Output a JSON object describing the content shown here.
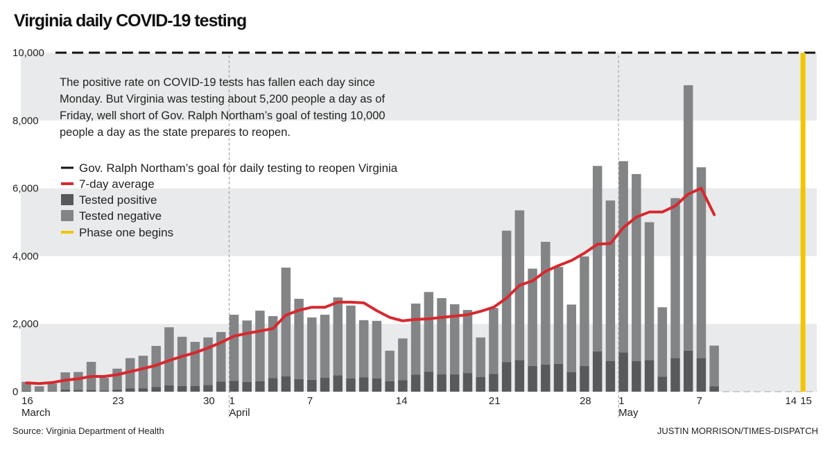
{
  "title": "Virginia daily COVID-19 testing",
  "annotation": [
    "The positive rate on COVID-19 tests has fallen each day since",
    "Monday. But Virginia was testing about 5,200 people a day as of",
    "Friday, well short of Gov. Ralph Northam’s goal of testing 10,000",
    "people a day as the state prepares to reopen."
  ],
  "legend": [
    {
      "label": "Gov. Ralph Northam’s goal for daily testing to reopen Virginia",
      "color": "#111111",
      "style": "dashed-line"
    },
    {
      "label": "7-day average",
      "color": "#d7282e",
      "style": "line"
    },
    {
      "label": "Tested positive",
      "color": "#58595b",
      "style": "box"
    },
    {
      "label": "Tested negative",
      "color": "#838486",
      "style": "box"
    },
    {
      "label": "Phase one begins",
      "color": "#f2c500",
      "style": "line"
    }
  ],
  "source": "Source: Virginia Department of Health",
  "credit": "JUSTIN MORRISON/TIMES-DISPATCH",
  "chart_data": {
    "type": "bar",
    "stacked": true,
    "ylim": [
      0,
      10000
    ],
    "yticks": [
      "0",
      "2,000",
      "4,000",
      "6,000",
      "8,000",
      "10,000"
    ],
    "ytick_values": [
      0,
      2000,
      4000,
      6000,
      8000,
      10000
    ],
    "x_range": [
      "March 16",
      "May 15"
    ],
    "grid": "alternating bands",
    "xticks": [
      {
        "label": "16",
        "month": "March",
        "date": "2020-03-16"
      },
      {
        "label": "23",
        "month": "",
        "date": "2020-03-23"
      },
      {
        "label": "30",
        "month": "",
        "date": "2020-03-30"
      },
      {
        "label": "1",
        "month": "April",
        "date": "2020-04-01"
      },
      {
        "label": "7",
        "month": "",
        "date": "2020-04-07"
      },
      {
        "label": "14",
        "month": "",
        "date": "2020-04-14"
      },
      {
        "label": "21",
        "month": "",
        "date": "2020-04-21"
      },
      {
        "label": "28",
        "month": "",
        "date": "2020-04-28"
      },
      {
        "label": "1",
        "month": "May",
        "date": "2020-05-01"
      },
      {
        "label": "7",
        "month": "",
        "date": "2020-05-07"
      },
      {
        "label": "14",
        "month": "",
        "date": "2020-05-14"
      },
      {
        "label": "15",
        "month": "",
        "date": "2020-05-15"
      }
    ],
    "start_date": "2020-03-16",
    "goal": 10000,
    "phase_one_date": "2020-05-15",
    "series": [
      {
        "name": "Tested positive",
        "values": [
          20,
          10,
          10,
          60,
          50,
          50,
          30,
          60,
          100,
          100,
          140,
          190,
          170,
          170,
          200,
          300,
          320,
          290,
          310,
          400,
          450,
          370,
          350,
          410,
          480,
          390,
          420,
          390,
          310,
          340,
          500,
          590,
          510,
          510,
          550,
          430,
          525,
          870,
          930,
          760,
          800,
          820,
          580,
          760,
          1190,
          900,
          1160,
          900,
          930,
          440,
          990,
          1210,
          990,
          160
        ]
      },
      {
        "name": "Tested negative",
        "values": [
          270,
          150,
          230,
          510,
          530,
          830,
          380,
          620,
          890,
          960,
          1210,
          1710,
          1450,
          1300,
          1400,
          1460,
          1950,
          1810,
          2080,
          1830,
          3210,
          2370,
          1840,
          1860,
          2300,
          2150,
          1690,
          1700,
          900,
          1230,
          2100,
          2350,
          2250,
          2070,
          1860,
          1170,
          1945,
          3880,
          4420,
          2870,
          3620,
          2860,
          1990,
          3230,
          5470,
          4740,
          5640,
          5520,
          4070,
          2050,
          4720,
          7830,
          5630,
          1200
        ]
      },
      {
        "name": "7-day average",
        "type": "line",
        "values": [
          260,
          240,
          270,
          340,
          380,
          450,
          450,
          500,
          590,
          680,
          780,
          920,
          1040,
          1150,
          1290,
          1450,
          1640,
          1720,
          1790,
          1860,
          2260,
          2400,
          2490,
          2490,
          2640,
          2640,
          2620,
          2390,
          2190,
          2090,
          2130,
          2150,
          2190,
          2230,
          2270,
          2370,
          2490,
          2760,
          3140,
          3270,
          3550,
          3720,
          3870,
          4090,
          4350,
          4370,
          4840,
          5150,
          5300,
          5300,
          5480,
          5830,
          6000,
          5220
        ]
      }
    ]
  }
}
